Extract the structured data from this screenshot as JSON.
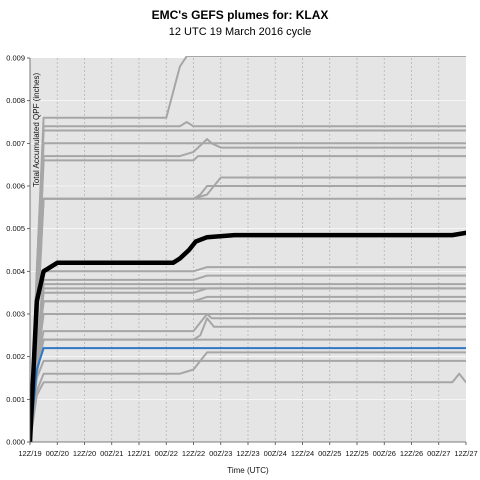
{
  "chart_data": {
    "type": "line",
    "title": "EMC's GEFS plumes for: KLAX",
    "subtitle": "12 UTC 19 March 2016 cycle",
    "xlabel": "Time (UTC)",
    "ylabel": "Total Accumulated QPF (inches)",
    "x_tick_labels": [
      "12Z/19",
      "00Z/20",
      "12Z/20",
      "00Z/21",
      "12Z/21",
      "00Z/22",
      "12Z/22",
      "00Z/23",
      "12Z/23",
      "00Z/24",
      "12Z/24",
      "00Z/25",
      "12Z/25",
      "00Z/26",
      "12Z/26",
      "00Z/27",
      "12Z/27"
    ],
    "x_range_hours": [
      0,
      192
    ],
    "x_tick_step_hours": 12,
    "ylim": [
      0,
      0.009
    ],
    "y_ticks": [
      0.0,
      0.001,
      0.002,
      0.003,
      0.004,
      0.005,
      0.006,
      0.007,
      0.008,
      0.009
    ],
    "grid": true,
    "background": "#e5e5e5",
    "colors": {
      "members": "#a6a6a6",
      "mean": "#000000",
      "control": "#2e78c4"
    },
    "series": [
      {
        "role": "mean",
        "points": [
          [
            0,
            0
          ],
          [
            3,
            0.0033
          ],
          [
            6,
            0.004
          ],
          [
            12,
            0.0042
          ],
          [
            30,
            0.0042
          ],
          [
            60,
            0.0042
          ],
          [
            63,
            0.0042
          ],
          [
            66,
            0.0043
          ],
          [
            70,
            0.0045
          ],
          [
            73,
            0.0047
          ],
          [
            78,
            0.0048
          ],
          [
            90,
            0.00485
          ],
          [
            150,
            0.00485
          ],
          [
            186,
            0.00485
          ],
          [
            192,
            0.0049
          ]
        ]
      },
      {
        "role": "control",
        "points": [
          [
            0,
            0
          ],
          [
            3,
            0.0017
          ],
          [
            6,
            0.0022
          ],
          [
            192,
            0.0022
          ]
        ]
      },
      {
        "role": "member",
        "points": [
          [
            0,
            0
          ],
          [
            3,
            0.004
          ],
          [
            6,
            0.0076
          ],
          [
            60,
            0.0076
          ],
          [
            66,
            0.0088
          ],
          [
            69,
            0.0091
          ],
          [
            192,
            0.0091
          ]
        ]
      },
      {
        "role": "member",
        "points": [
          [
            0,
            0
          ],
          [
            3,
            0.004
          ],
          [
            6,
            0.0074
          ],
          [
            66,
            0.0074
          ],
          [
            69,
            0.0075
          ],
          [
            72,
            0.0074
          ],
          [
            192,
            0.0074
          ]
        ]
      },
      {
        "role": "member",
        "points": [
          [
            0,
            0
          ],
          [
            3,
            0.0035
          ],
          [
            6,
            0.0073
          ],
          [
            192,
            0.0073
          ]
        ]
      },
      {
        "role": "member",
        "points": [
          [
            0,
            0
          ],
          [
            3,
            0.0035
          ],
          [
            6,
            0.007
          ],
          [
            90,
            0.007
          ],
          [
            192,
            0.007
          ]
        ]
      },
      {
        "role": "member",
        "points": [
          [
            0,
            0
          ],
          [
            3,
            0.003
          ],
          [
            6,
            0.0067
          ],
          [
            66,
            0.0067
          ],
          [
            72,
            0.0068
          ],
          [
            78,
            0.0071
          ],
          [
            80,
            0.007
          ],
          [
            84,
            0.0069
          ],
          [
            192,
            0.0069
          ]
        ]
      },
      {
        "role": "member",
        "points": [
          [
            0,
            0
          ],
          [
            3,
            0.003
          ],
          [
            6,
            0.0066
          ],
          [
            72,
            0.0066
          ],
          [
            74,
            0.0067
          ],
          [
            192,
            0.0067
          ]
        ]
      },
      {
        "role": "member",
        "points": [
          [
            0,
            0
          ],
          [
            3,
            0.003
          ],
          [
            6,
            0.0057
          ],
          [
            72,
            0.0057
          ],
          [
            78,
            0.0058
          ],
          [
            84,
            0.0062
          ],
          [
            192,
            0.0062
          ]
        ]
      },
      {
        "role": "member",
        "points": [
          [
            0,
            0
          ],
          [
            3,
            0.0028
          ],
          [
            6,
            0.0057
          ],
          [
            72,
            0.0057
          ],
          [
            75,
            0.0058
          ],
          [
            78,
            0.006
          ],
          [
            192,
            0.006
          ]
        ]
      },
      {
        "role": "member",
        "points": [
          [
            0,
            0
          ],
          [
            3,
            0.0025
          ],
          [
            6,
            0.0057
          ],
          [
            84,
            0.0057
          ],
          [
            192,
            0.0057
          ]
        ]
      },
      {
        "role": "member",
        "points": [
          [
            0,
            0
          ],
          [
            3,
            0.002
          ],
          [
            6,
            0.004
          ],
          [
            60,
            0.004
          ],
          [
            72,
            0.004
          ],
          [
            78,
            0.0041
          ],
          [
            192,
            0.0041
          ]
        ]
      },
      {
        "role": "member",
        "points": [
          [
            0,
            0
          ],
          [
            3,
            0.002
          ],
          [
            6,
            0.0038
          ],
          [
            72,
            0.0038
          ],
          [
            78,
            0.0039
          ],
          [
            192,
            0.0039
          ]
        ]
      },
      {
        "role": "member",
        "points": [
          [
            0,
            0
          ],
          [
            3,
            0.002
          ],
          [
            6,
            0.0037
          ],
          [
            192,
            0.0037
          ]
        ]
      },
      {
        "role": "member",
        "points": [
          [
            0,
            0
          ],
          [
            3,
            0.002
          ],
          [
            6,
            0.0036
          ],
          [
            192,
            0.0036
          ]
        ]
      },
      {
        "role": "member",
        "points": [
          [
            0,
            0
          ],
          [
            3,
            0.002
          ],
          [
            6,
            0.0035
          ],
          [
            72,
            0.0035
          ],
          [
            78,
            0.0036
          ],
          [
            192,
            0.0036
          ]
        ]
      },
      {
        "role": "member",
        "points": [
          [
            0,
            0
          ],
          [
            3,
            0.002
          ],
          [
            6,
            0.0033
          ],
          [
            72,
            0.0033
          ],
          [
            78,
            0.0034
          ],
          [
            192,
            0.0034
          ]
        ]
      },
      {
        "role": "member",
        "points": [
          [
            0,
            0
          ],
          [
            3,
            0.002
          ],
          [
            6,
            0.0033
          ],
          [
            192,
            0.0033
          ]
        ]
      },
      {
        "role": "member",
        "points": [
          [
            0,
            0
          ],
          [
            3,
            0.0018
          ],
          [
            6,
            0.003
          ],
          [
            192,
            0.003
          ]
        ]
      },
      {
        "role": "member",
        "points": [
          [
            0,
            0
          ],
          [
            3,
            0.0018
          ],
          [
            6,
            0.0026
          ],
          [
            72,
            0.0026
          ],
          [
            75,
            0.0028
          ],
          [
            78,
            0.003
          ],
          [
            80,
            0.0029
          ],
          [
            84,
            0.0029
          ],
          [
            192,
            0.0029
          ]
        ]
      },
      {
        "role": "member",
        "points": [
          [
            0,
            0
          ],
          [
            3,
            0.0018
          ],
          [
            6,
            0.0024
          ],
          [
            72,
            0.0024
          ],
          [
            75,
            0.0025
          ],
          [
            78,
            0.0029
          ],
          [
            81,
            0.0027
          ],
          [
            84,
            0.0027
          ],
          [
            192,
            0.0027
          ]
        ]
      },
      {
        "role": "member",
        "points": [
          [
            0,
            0
          ],
          [
            3,
            0.0016
          ],
          [
            6,
            0.0024
          ],
          [
            186,
            0.0024
          ],
          [
            192,
            0.0024
          ]
        ]
      },
      {
        "role": "member",
        "points": [
          [
            0,
            0
          ],
          [
            3,
            0.0015
          ],
          [
            6,
            0.0019
          ],
          [
            192,
            0.0019
          ]
        ]
      },
      {
        "role": "member",
        "points": [
          [
            0,
            0
          ],
          [
            3,
            0.0012
          ],
          [
            6,
            0.0016
          ],
          [
            66,
            0.0016
          ],
          [
            72,
            0.0017
          ],
          [
            75,
            0.0019
          ],
          [
            78,
            0.0021
          ],
          [
            192,
            0.0021
          ]
        ]
      },
      {
        "role": "member",
        "points": [
          [
            0,
            0
          ],
          [
            3,
            0.0011
          ],
          [
            6,
            0.0014
          ],
          [
            186,
            0.0014
          ],
          [
            189,
            0.0016
          ],
          [
            192,
            0.0014
          ]
        ]
      }
    ]
  }
}
